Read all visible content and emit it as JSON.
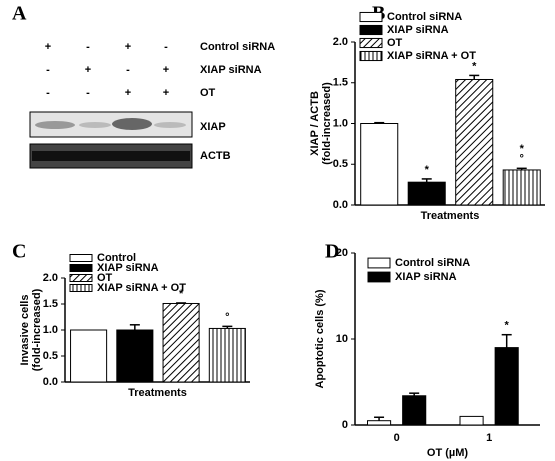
{
  "blot": {
    "panel_label": "A",
    "rows": [
      {
        "label": "Control siRNA",
        "signs": [
          "+",
          "-",
          "+",
          "-"
        ]
      },
      {
        "label": "XIAP siRNA",
        "signs": [
          "-",
          "+",
          "-",
          "+"
        ]
      },
      {
        "label": "OT",
        "signs": [
          "-",
          "-",
          "+",
          "+"
        ]
      }
    ],
    "bands": [
      "XIAP",
      "ACTB"
    ]
  },
  "chart_data": [
    {
      "type": "bar",
      "panel_label": "B",
      "ylabel": "XIAP / ACTB",
      "ylabel_sub": "(fold-increased)",
      "xlabel": "Treatments",
      "categories": [
        "Control siRNA",
        "XIAP siRNA",
        "OT",
        "XIAP siRNA + OT"
      ],
      "values": [
        1.0,
        0.28,
        1.54,
        0.43
      ],
      "errors": [
        0.01,
        0.04,
        0.05,
        0.02
      ],
      "fills": [
        "white",
        "black",
        "diagonal",
        "vertical"
      ],
      "significance": [
        null,
        "*",
        "*",
        "*"
      ],
      "markers": [
        null,
        null,
        null,
        "°"
      ],
      "ylim": [
        0,
        2
      ],
      "yticks": [
        {
          "value": 0,
          "label": "0.0"
        },
        0.5,
        {
          "value": 1,
          "label": "1.0"
        },
        1.5,
        {
          "value": 2,
          "label": "2.0"
        }
      ],
      "legend": "upper left"
    },
    {
      "type": "bar",
      "panel_label": "C",
      "ylabel": "Invasive cells",
      "ylabel_sub": "(fold-increased)",
      "xlabel": "Treatments",
      "categories": [
        "Control",
        "XIAP siRNA",
        "OT",
        "XIAP siRNA + OT"
      ],
      "values": [
        1.0,
        1.0,
        1.51,
        1.03
      ],
      "errors": [
        0.0,
        0.1,
        0.01,
        0.04
      ],
      "fills": [
        "white",
        "black",
        "diagonal",
        "vertical"
      ],
      "significance": [
        null,
        null,
        "*",
        null
      ],
      "markers": [
        null,
        null,
        null,
        "°"
      ],
      "ylim": [
        0,
        2
      ],
      "yticks": [
        {
          "value": 0,
          "label": "0.0"
        },
        0.5,
        {
          "value": 1,
          "label": "1.0"
        },
        1.5,
        {
          "value": 2,
          "label": "2.0"
        }
      ],
      "legend": "upper left"
    },
    {
      "type": "grouped_bar",
      "panel_label": "D",
      "ylabel": "Apoptotic cells (%)",
      "xlabel": "OT (µM)",
      "categories": [
        "0",
        "1"
      ],
      "series": [
        {
          "name": "Control siRNA",
          "color": "#ffffff",
          "values": [
            0.5,
            1.0
          ],
          "errors": [
            0.4,
            0.0
          ],
          "significance": [
            null,
            null
          ]
        },
        {
          "name": "XIAP siRNA",
          "color": "#000000",
          "values": [
            3.4,
            9.0
          ],
          "errors": [
            0.3,
            1.5
          ],
          "significance": [
            null,
            "*"
          ]
        }
      ],
      "ylim": [
        0,
        20
      ],
      "yticks": [
        0,
        10,
        20
      ],
      "legend": "upper left"
    }
  ]
}
